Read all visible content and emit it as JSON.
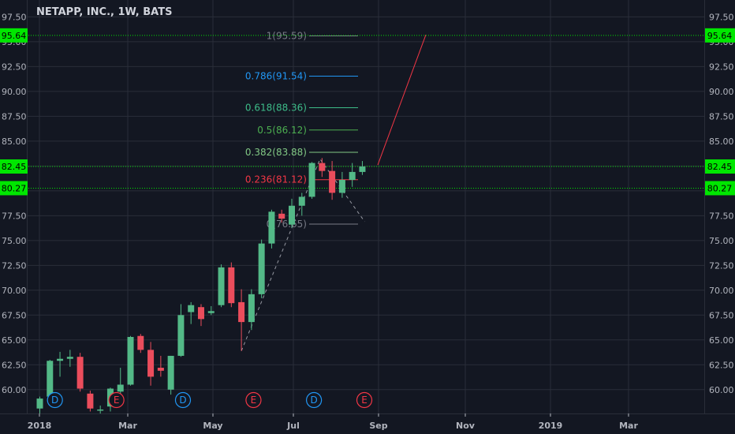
{
  "chart_data": {
    "type": "candlestick",
    "title": "NETAPP, INC., 1W, BATS",
    "colors": {
      "background": "#131722",
      "grid": "#2a2e39",
      "up": "#53b987",
      "down": "#eb4d5c",
      "axis_text": "#b2b5be",
      "price_line": "#00e600"
    },
    "y_ticks": [
      "60.00",
      "62.50",
      "65.00",
      "67.50",
      "70.00",
      "72.50",
      "75.00",
      "77.50",
      "80.00",
      "82.50",
      "85.00",
      "87.50",
      "90.00",
      "92.50",
      "95.00",
      "97.50"
    ],
    "x_ticks": [
      "2018",
      "Mar",
      "May",
      "Jul",
      "Sep",
      "Nov",
      "2019",
      "Mar"
    ],
    "ylim": [
      57.6,
      99.2
    ],
    "candles": [
      {
        "o": 58.1,
        "h": 59.3,
        "l": 57.6,
        "c": 59.1
      },
      {
        "o": 59.3,
        "h": 63.0,
        "l": 58.8,
        "c": 62.9
      },
      {
        "o": 62.9,
        "h": 63.8,
        "l": 61.3,
        "c": 63.1
      },
      {
        "o": 63.1,
        "h": 64.0,
        "l": 62.3,
        "c": 63.3
      },
      {
        "o": 63.3,
        "h": 63.7,
        "l": 59.8,
        "c": 60.1
      },
      {
        "o": 59.6,
        "h": 59.9,
        "l": 57.8,
        "c": 58.1
      },
      {
        "o": 58.0,
        "h": 58.4,
        "l": 57.6,
        "c": 58.0
      },
      {
        "o": 58.3,
        "h": 60.2,
        "l": 57.8,
        "c": 60.1
      },
      {
        "o": 59.8,
        "h": 62.2,
        "l": 59.3,
        "c": 60.5
      },
      {
        "o": 60.5,
        "h": 65.4,
        "l": 60.4,
        "c": 65.3
      },
      {
        "o": 65.4,
        "h": 65.6,
        "l": 63.7,
        "c": 64.0
      },
      {
        "o": 64.0,
        "h": 64.8,
        "l": 60.4,
        "c": 61.3
      },
      {
        "o": 62.2,
        "h": 63.4,
        "l": 61.3,
        "c": 61.9
      },
      {
        "o": 60.0,
        "h": 63.4,
        "l": 59.5,
        "c": 63.4
      },
      {
        "o": 63.4,
        "h": 68.6,
        "l": 63.3,
        "c": 67.5
      },
      {
        "o": 67.8,
        "h": 68.8,
        "l": 66.6,
        "c": 68.5
      },
      {
        "o": 68.3,
        "h": 68.6,
        "l": 66.4,
        "c": 67.1
      },
      {
        "o": 67.7,
        "h": 68.4,
        "l": 67.5,
        "c": 67.9
      },
      {
        "o": 68.5,
        "h": 72.6,
        "l": 68.3,
        "c": 72.3
      },
      {
        "o": 72.3,
        "h": 72.8,
        "l": 68.3,
        "c": 68.7
      },
      {
        "o": 68.8,
        "h": 70.1,
        "l": 63.9,
        "c": 66.8
      },
      {
        "o": 66.8,
        "h": 70.1,
        "l": 66.0,
        "c": 69.6
      },
      {
        "o": 69.6,
        "h": 75.1,
        "l": 69.2,
        "c": 74.7
      },
      {
        "o": 74.7,
        "h": 78.1,
        "l": 74.2,
        "c": 77.9
      },
      {
        "o": 77.7,
        "h": 78.1,
        "l": 76.8,
        "c": 77.2
      },
      {
        "o": 76.6,
        "h": 79.2,
        "l": 76.3,
        "c": 78.5
      },
      {
        "o": 78.5,
        "h": 79.8,
        "l": 77.5,
        "c": 79.4
      },
      {
        "o": 79.4,
        "h": 82.9,
        "l": 79.2,
        "c": 82.8
      },
      {
        "o": 82.8,
        "h": 83.3,
        "l": 81.4,
        "c": 82.0
      },
      {
        "o": 82.0,
        "h": 83.0,
        "l": 79.1,
        "c": 79.8
      },
      {
        "o": 79.8,
        "h": 81.9,
        "l": 79.3,
        "c": 81.1
      },
      {
        "o": 81.1,
        "h": 82.8,
        "l": 80.4,
        "c": 81.9
      },
      {
        "o": 81.9,
        "h": 83.0,
        "l": 81.6,
        "c": 82.45
      }
    ],
    "fib_levels": [
      {
        "label": "1(95.59)",
        "value": 95.59,
        "color": "#787b86"
      },
      {
        "label": "0.786(91.54)",
        "value": 91.54,
        "color": "#2196f3"
      },
      {
        "label": "0.618(88.36)",
        "value": 88.36,
        "color": "#3dbc89"
      },
      {
        "label": "0.5(86.12)",
        "value": 86.12,
        "color": "#4caf50"
      },
      {
        "label": "0.382(83.88)",
        "value": 83.88,
        "color": "#81c784"
      },
      {
        "label": "0.236(81.12)",
        "value": 81.12,
        "color": "#f23645"
      },
      {
        "label": "0(76.65)",
        "value": 76.65,
        "color": "#787b86"
      }
    ],
    "price_lines": [
      {
        "label": "95.64",
        "value": 95.64
      },
      {
        "label": "82.45",
        "value": 82.45
      },
      {
        "label": "80.27",
        "value": 80.27
      }
    ],
    "events": [
      {
        "label": "D",
        "kind": "dividend",
        "candle": 1.5
      },
      {
        "label": "E",
        "kind": "earnings",
        "candle": 7.6
      },
      {
        "label": "D",
        "kind": "dividend",
        "candle": 14.2
      },
      {
        "label": "E",
        "kind": "earnings",
        "candle": 21.2
      },
      {
        "label": "D",
        "kind": "dividend",
        "candle": 27.2
      },
      {
        "label": "E",
        "kind": "earnings",
        "candle": 32.2
      }
    ]
  }
}
